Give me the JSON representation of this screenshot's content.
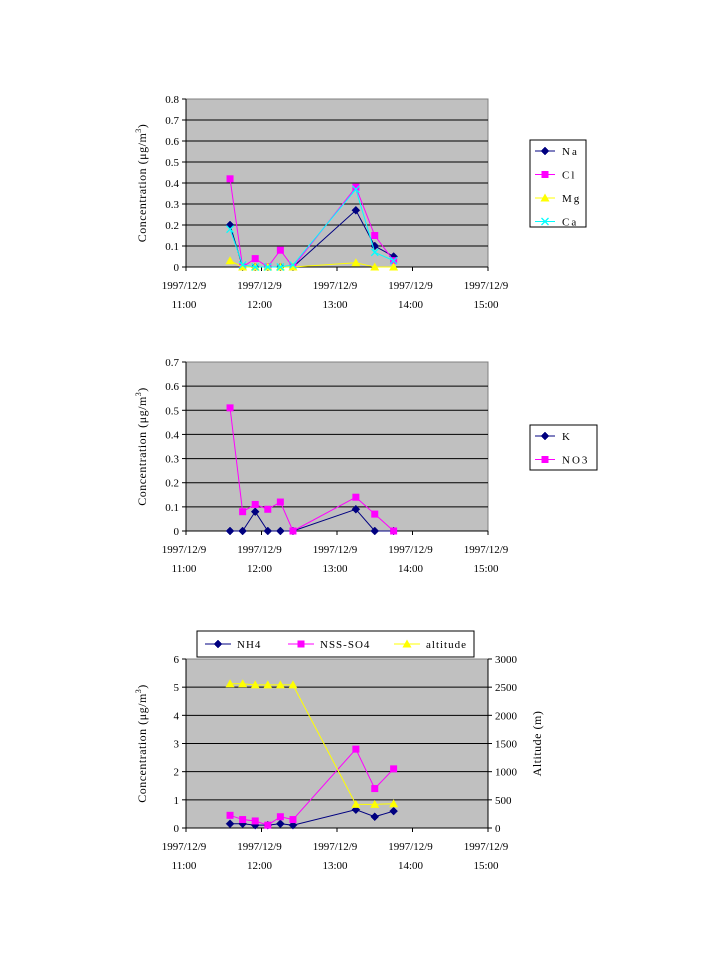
{
  "colors": {
    "plot_bg": "#c0c0c0",
    "Na": "#000080",
    "Cl": "#ff00ff",
    "Mg": "#ffff00",
    "Ca": "#00ffff",
    "K": "#000080",
    "NO3": "#ff00ff",
    "NH4": "#000080",
    "NSS-SO4": "#ff00ff",
    "altitude": "#ffff00"
  },
  "x_tick_labels": [
    [
      "1997/12/9",
      "11:00"
    ],
    [
      "1997/12/9",
      "12:00"
    ],
    [
      "1997/12/9",
      "13:00"
    ],
    [
      "1997/12/9",
      "14:00"
    ],
    [
      "1997/12/9",
      "15:00"
    ]
  ],
  "chart_data": [
    {
      "type": "line",
      "id": "chart1",
      "title": "",
      "xlabel": "",
      "ylabel": "Concentration (μg/m3)",
      "x_unit": "time (hours, 1997/12/9)",
      "xlim": [
        "11:00",
        "15:00"
      ],
      "ylim": [
        0,
        0.8
      ],
      "y_ticks": [
        "0",
        "0.1",
        "0.2",
        "0.3",
        "0.4",
        "0.5",
        "0.6",
        "0.7",
        "0.8"
      ],
      "grid": true,
      "legend_position": "right",
      "x": [
        "11:35",
        "11:45",
        "11:55",
        "12:05",
        "12:15",
        "12:25",
        "13:15",
        "13:30",
        "13:45"
      ],
      "series": [
        {
          "name": "Na",
          "marker": "diamond",
          "values": [
            0.2,
            0,
            0,
            0,
            0,
            0,
            0.27,
            0.1,
            0.05
          ]
        },
        {
          "name": "Cl",
          "marker": "square",
          "values": [
            0.42,
            0,
            0.04,
            0,
            0.08,
            0,
            0.38,
            0.15,
            0.03
          ]
        },
        {
          "name": "Mg",
          "marker": "triangle",
          "values": [
            0.03,
            0,
            0,
            0,
            0,
            0,
            0.02,
            0,
            0
          ]
        },
        {
          "name": "Ca",
          "marker": "x",
          "values": [
            0.18,
            0.01,
            0,
            0,
            0,
            0.01,
            0.37,
            0.07,
            0.03
          ]
        }
      ]
    },
    {
      "type": "line",
      "id": "chart2",
      "title": "",
      "xlabel": "",
      "ylabel": "Concentration (μg/m3)",
      "x_unit": "time (hours, 1997/12/9)",
      "xlim": [
        "11:00",
        "15:00"
      ],
      "ylim": [
        0,
        0.7
      ],
      "y_ticks": [
        "0",
        "0.1",
        "0.2",
        "0.3",
        "0.4",
        "0.5",
        "0.6",
        "0.7"
      ],
      "grid": true,
      "legend_position": "right",
      "x": [
        "11:35",
        "11:45",
        "11:55",
        "12:05",
        "12:15",
        "12:25",
        "13:15",
        "13:30",
        "13:45"
      ],
      "series": [
        {
          "name": "K",
          "marker": "diamond",
          "values": [
            0,
            0,
            0.08,
            0,
            0,
            0,
            0.09,
            0,
            0
          ]
        },
        {
          "name": "NO3",
          "marker": "square",
          "values": [
            0.51,
            0.08,
            0.11,
            0.09,
            0.12,
            0,
            0.14,
            0.07,
            0
          ]
        }
      ]
    },
    {
      "type": "line",
      "id": "chart3",
      "title": "",
      "xlabel": "",
      "ylabel": "Concentration (μg/m3)",
      "y2label": "Altitude (m)",
      "x_unit": "time (hours, 1997/12/9)",
      "xlim": [
        "11:00",
        "15:00"
      ],
      "ylim": [
        0,
        6
      ],
      "y2lim": [
        0,
        3000
      ],
      "y_ticks": [
        "0",
        "1",
        "2",
        "3",
        "4",
        "5",
        "6"
      ],
      "y2_ticks": [
        "0",
        "500",
        "1000",
        "1500",
        "2000",
        "2500",
        "3000"
      ],
      "grid": true,
      "legend_position": "top",
      "x": [
        "11:35",
        "11:45",
        "11:55",
        "12:05",
        "12:15",
        "12:25",
        "13:15",
        "13:30",
        "13:45"
      ],
      "series": [
        {
          "name": "NH4",
          "marker": "diamond",
          "axis": "left",
          "values": [
            0.15,
            0.15,
            0.1,
            0.1,
            0.15,
            0.1,
            0.65,
            0.4,
            0.6
          ]
        },
        {
          "name": "NSS-SO4",
          "marker": "square",
          "axis": "left",
          "values": [
            0.45,
            0.3,
            0.25,
            0.1,
            0.4,
            0.3,
            2.8,
            1.4,
            2.1
          ]
        },
        {
          "name": "altitude",
          "marker": "triangle",
          "axis": "right",
          "values": [
            2560,
            2560,
            2540,
            2540,
            2540,
            2540,
            420,
            420,
            430
          ]
        }
      ]
    }
  ]
}
